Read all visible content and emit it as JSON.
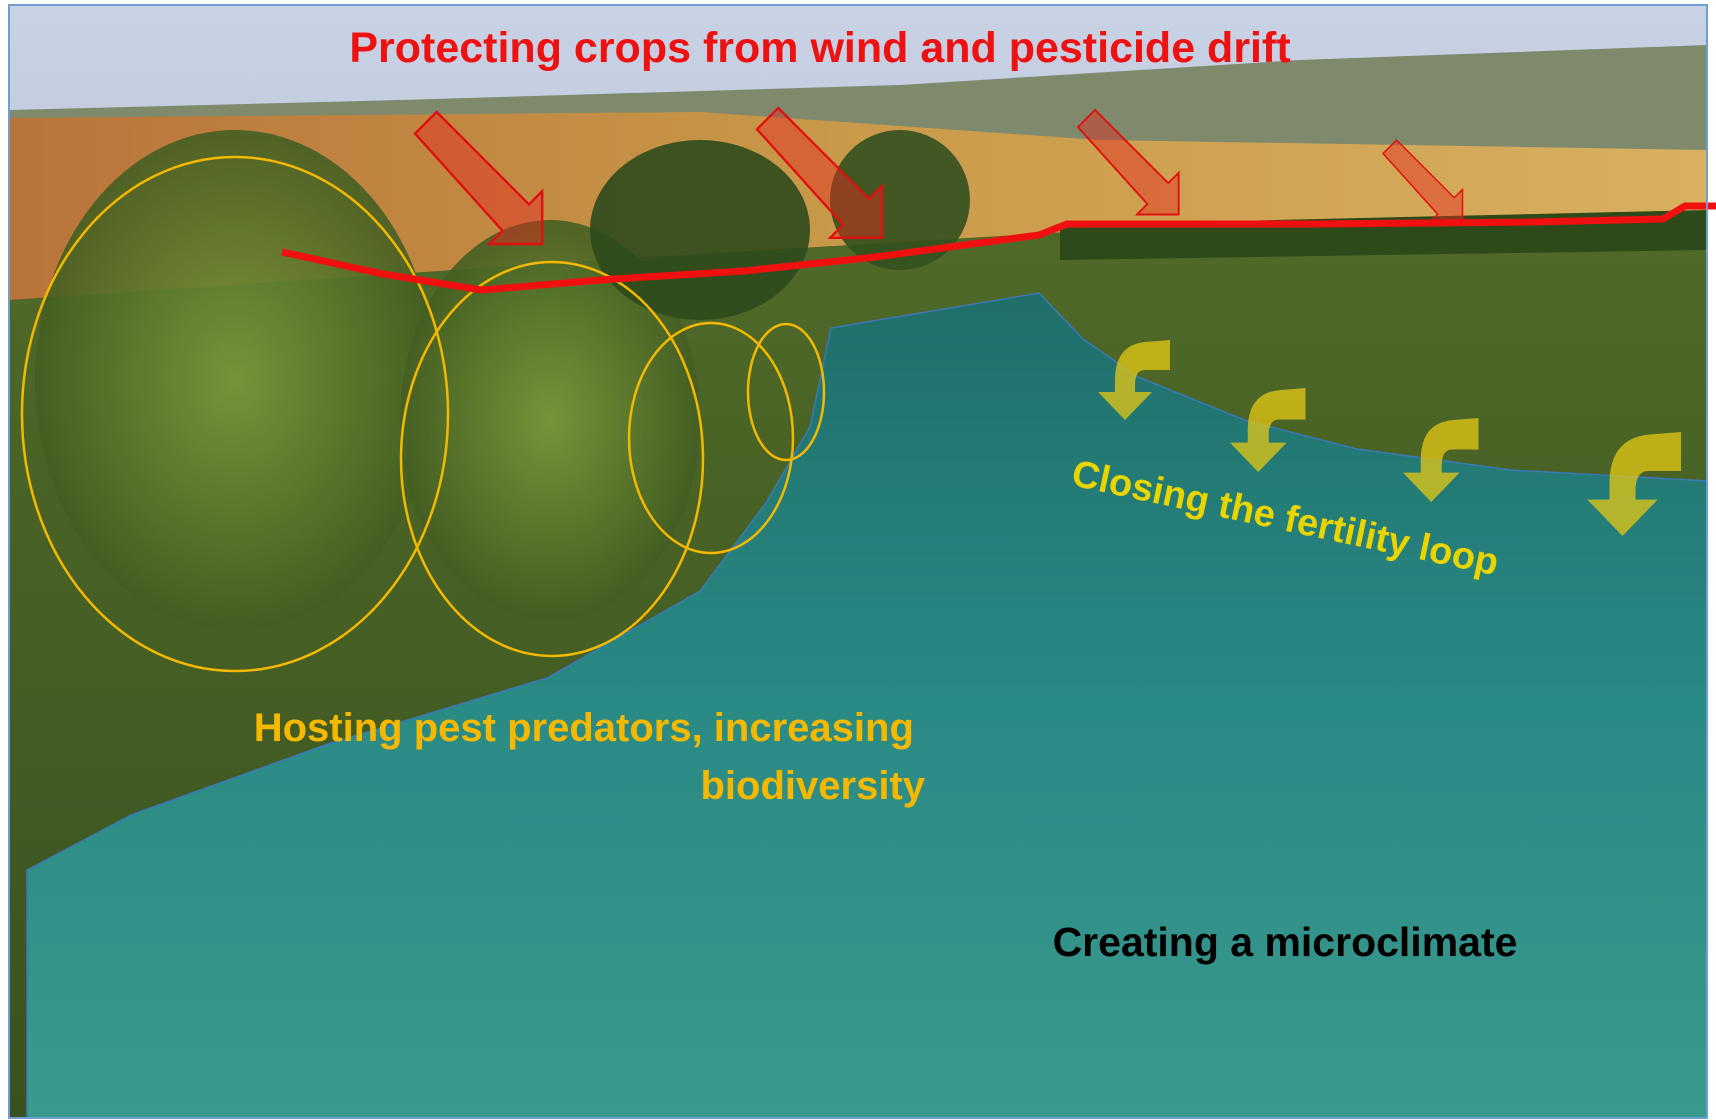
{
  "annotations": {
    "wind": "Protecting crops from wind and pesticide drift",
    "fertility": "Closing the fertility loop",
    "biodiversity": [
      "Hosting pest predators, increasing",
      "biodiversity"
    ],
    "microclimate": "Creating a microclimate"
  }
}
